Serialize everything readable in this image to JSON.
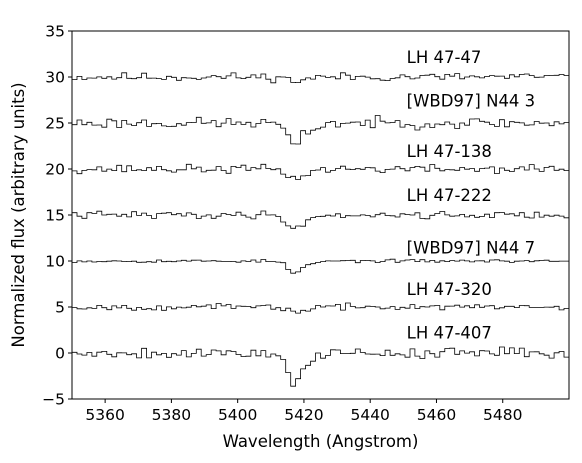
{
  "chart_data": {
    "type": "line",
    "step": true,
    "title": "",
    "xlabel": "Wavelength (Angstrom)",
    "ylabel": "Normalized flux (arbitrary units)",
    "xlim": [
      5350,
      5500
    ],
    "ylim": [
      -5,
      35
    ],
    "xticks": [
      5360,
      5380,
      5400,
      5420,
      5440,
      5460,
      5480
    ],
    "yticks": [
      -5,
      0,
      5,
      10,
      15,
      20,
      25,
      30,
      35
    ],
    "grid": false,
    "line_color": "#000000",
    "label_x": 5451,
    "series": [
      {
        "name": "LH 47-47",
        "offset": 30,
        "label_y": 31.5,
        "noise": 0.35,
        "dip_depth": 0.4,
        "seed": 11
      },
      {
        "name": "[WBD97] N44 3",
        "offset": 25,
        "label_y": 26.8,
        "noise": 0.45,
        "dip_depth": 2.3,
        "seed": 23
      },
      {
        "name": "LH 47-138",
        "offset": 20,
        "label_y": 21.3,
        "noise": 0.35,
        "dip_depth": 1.0,
        "seed": 37
      },
      {
        "name": "LH 47-222",
        "offset": 15,
        "label_y": 16.5,
        "noise": 0.3,
        "dip_depth": 1.4,
        "seed": 41
      },
      {
        "name": "[WBD97] N44 7",
        "offset": 10,
        "label_y": 10.8,
        "noise": 0.12,
        "dip_depth": 1.2,
        "seed": 53
      },
      {
        "name": "LH 47-320",
        "offset": 5,
        "label_y": 6.3,
        "noise": 0.25,
        "dip_depth": 0.5,
        "seed": 67
      },
      {
        "name": "LH 47-407",
        "offset": 0,
        "label_y": 1.6,
        "noise": 0.45,
        "dip_depth": 2.8,
        "seed": 79
      }
    ]
  }
}
